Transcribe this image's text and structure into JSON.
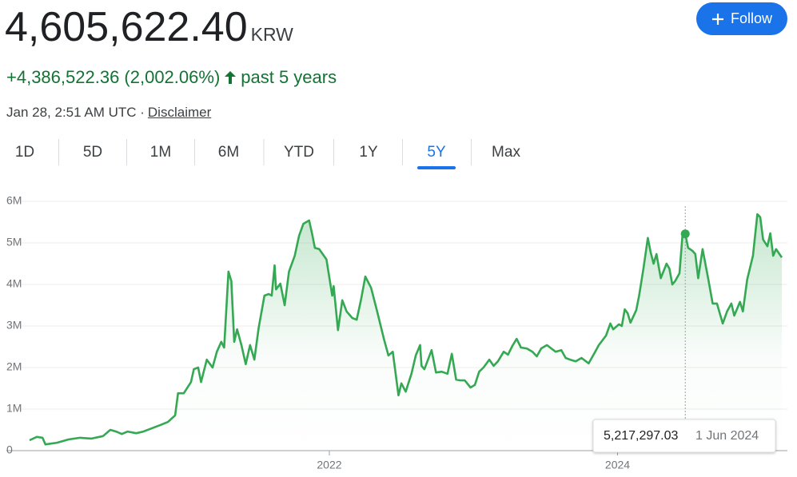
{
  "header": {
    "price": "4,605,622.40",
    "currency": "KRW",
    "change": "+4,386,522.36 (2,002.06%)",
    "period": "past 5 years",
    "timestamp": "Jan 28, 2:51 AM UTC ·",
    "disclaimer": "Disclaimer",
    "follow": "Follow"
  },
  "tabs": [
    "1D",
    "5D",
    "1M",
    "6M",
    "YTD",
    "1Y",
    "5Y",
    "Max"
  ],
  "selected_tab": "5Y",
  "chart_data": {
    "type": "line",
    "color": "#34a853",
    "grid": true,
    "xlim": [
      2019.92,
      2025.14
    ],
    "xticks": [
      2022,
      2024
    ],
    "ylim": [
      0,
      6000000
    ],
    "yticks": [
      0,
      {
        "value": 1000000,
        "label": "1M"
      },
      {
        "value": 2000000,
        "label": "2M"
      },
      {
        "value": 3000000,
        "label": "3M"
      },
      {
        "value": 4000000,
        "label": "4M"
      },
      {
        "value": 5000000,
        "label": "5M"
      },
      {
        "value": 6000000,
        "label": "6M"
      }
    ],
    "x": [
      2019.92,
      2019.97,
      2020.01,
      2020.03,
      2020.11,
      2020.19,
      2020.27,
      2020.35,
      2020.43,
      2020.48,
      2020.52,
      2020.56,
      2020.6,
      2020.66,
      2020.71,
      2020.77,
      2020.83,
      2020.88,
      2020.93,
      2020.95,
      2020.99,
      2021.04,
      2021.06,
      2021.09,
      2021.11,
      2021.15,
      2021.19,
      2021.22,
      2021.25,
      2021.27,
      2021.3,
      2021.32,
      2021.34,
      2021.36,
      2021.39,
      2021.42,
      2021.45,
      2021.48,
      2021.51,
      2021.55,
      2021.58,
      2021.6,
      2021.62,
      2021.63,
      2021.66,
      2021.69,
      2021.72,
      2021.76,
      2021.79,
      2021.82,
      2021.86,
      2021.88,
      2021.9,
      2021.93,
      2021.98,
      2022.02,
      2022.03,
      2022.06,
      2022.09,
      2022.12,
      2022.16,
      2022.19,
      2022.22,
      2022.25,
      2022.29,
      2022.33,
      2022.38,
      2022.41,
      2022.44,
      2022.48,
      2022.5,
      2022.53,
      2022.57,
      2022.6,
      2022.63,
      2022.64,
      2022.66,
      2022.71,
      2022.74,
      2022.78,
      2022.82,
      2022.85,
      2022.88,
      2022.91,
      2022.94,
      2022.98,
      2023.01,
      2023.04,
      2023.07,
      2023.11,
      2023.14,
      2023.17,
      2023.21,
      2023.24,
      2023.27,
      2023.3,
      2023.33,
      2023.37,
      2023.41,
      2023.44,
      2023.47,
      2023.51,
      2023.54,
      2023.57,
      2023.61,
      2023.64,
      2023.67,
      2023.71,
      2023.75,
      2023.8,
      2023.84,
      2023.87,
      2023.92,
      2023.95,
      2023.97,
      2024.01,
      2024.03,
      2024.05,
      2024.07,
      2024.09,
      2024.13,
      2024.15,
      2024.18,
      2024.21,
      2024.23,
      2024.25,
      2024.27,
      2024.3,
      2024.34,
      2024.36,
      2024.38,
      2024.4,
      2024.43,
      2024.45,
      2024.47,
      2024.49,
      2024.52,
      2024.54,
      2024.56,
      2024.59,
      2024.63,
      2024.66,
      2024.69,
      2024.73,
      2024.76,
      2024.79,
      2024.81,
      2024.85,
      2024.87,
      2024.9,
      2024.94,
      2024.97,
      2024.99,
      2025.01,
      2025.04,
      2025.06,
      2025.08,
      2025.1,
      2025.14
    ],
    "values": [
      250000,
      330000,
      310000,
      150000,
      190000,
      270000,
      310000,
      290000,
      350000,
      500000,
      460000,
      400000,
      460000,
      420000,
      460000,
      540000,
      620000,
      690000,
      850000,
      1380000,
      1380000,
      1650000,
      1960000,
      2000000,
      1650000,
      2190000,
      2000000,
      2380000,
      2620000,
      2480000,
      4310000,
      4080000,
      2620000,
      2920000,
      2540000,
      2080000,
      2540000,
      2190000,
      2960000,
      3730000,
      3770000,
      3730000,
      4460000,
      3880000,
      4020000,
      3500000,
      4310000,
      4690000,
      5170000,
      5460000,
      5540000,
      5230000,
      4880000,
      4850000,
      4600000,
      3730000,
      3960000,
      2900000,
      3620000,
      3350000,
      3190000,
      3150000,
      3630000,
      4190000,
      3920000,
      3380000,
      2670000,
      2290000,
      2380000,
      1330000,
      1620000,
      1420000,
      1850000,
      2290000,
      2540000,
      2040000,
      1960000,
      2420000,
      1880000,
      1900000,
      1850000,
      2330000,
      1710000,
      1690000,
      1690000,
      1520000,
      1580000,
      1900000,
      2000000,
      2190000,
      2040000,
      2150000,
      2380000,
      2310000,
      2520000,
      2690000,
      2480000,
      2460000,
      2380000,
      2270000,
      2460000,
      2540000,
      2460000,
      2380000,
      2420000,
      2230000,
      2190000,
      2150000,
      2230000,
      2100000,
      2350000,
      2540000,
      2770000,
      3060000,
      2920000,
      3040000,
      3000000,
      3400000,
      3310000,
      3080000,
      3380000,
      3730000,
      4380000,
      5120000,
      4770000,
      4500000,
      4730000,
      4150000,
      4500000,
      4380000,
      4000000,
      4080000,
      4270000,
      5150000,
      5217297.03,
      4880000,
      4810000,
      4730000,
      4150000,
      4850000,
      4120000,
      3540000,
      3540000,
      3060000,
      3350000,
      3540000,
      3250000,
      3580000,
      3350000,
      4120000,
      4690000,
      5690000,
      5620000,
      5080000,
      4920000,
      5230000,
      4690000,
      4850000,
      4650000
    ],
    "tooltip": {
      "x": 2024.47,
      "value": 5217297.03,
      "value_label": "5,217,297.03",
      "date": "1 Jun 2024"
    }
  }
}
